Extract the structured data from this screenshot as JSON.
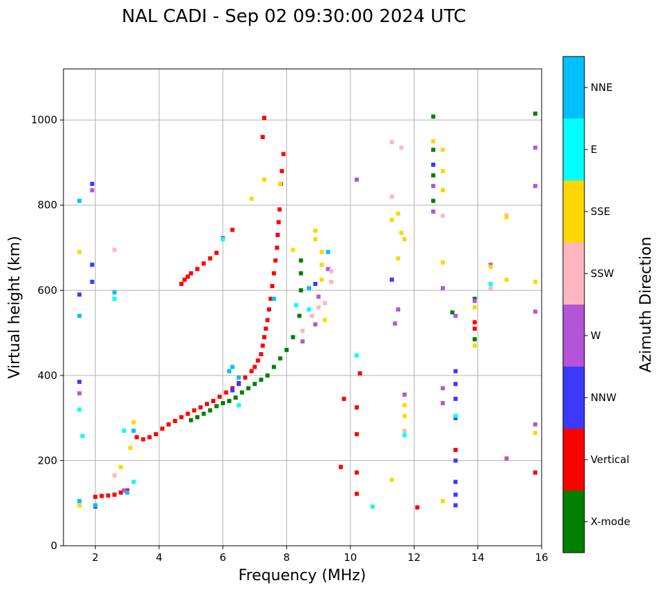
{
  "chart_data": {
    "type": "scatter",
    "title": "NAL CADI - Sep 02 09:30:00 2024 UTC",
    "xlabel": "Frequency (MHz)",
    "ylabel": "Virtual height (km)",
    "xlim": [
      1,
      16
    ],
    "ylim": [
      0,
      1120
    ],
    "xticks": [
      2,
      4,
      6,
      8,
      10,
      12,
      14,
      16
    ],
    "yticks": [
      0,
      200,
      400,
      600,
      800,
      1000
    ],
    "grid": true,
    "colorbar": {
      "title": "Azimuth Direction",
      "categories": [
        {
          "name": "X-mode",
          "color": "#008000"
        },
        {
          "name": "Vertical",
          "color": "#ff0000"
        },
        {
          "name": "NNW",
          "color": "#3a3aff"
        },
        {
          "name": "W",
          "color": "#b455d8"
        },
        {
          "name": "SSW",
          "color": "#ffb6c1"
        },
        {
          "name": "SSE",
          "color": "#ffd700"
        },
        {
          "name": "E",
          "color": "#00ffff"
        },
        {
          "name": "NNE",
          "color": "#00bfff"
        }
      ]
    },
    "series": [
      {
        "name": "Vertical",
        "color": "#ff0000",
        "points": [
          [
            2.0,
            115
          ],
          [
            2.2,
            117
          ],
          [
            2.4,
            118
          ],
          [
            2.6,
            120
          ],
          [
            2.8,
            125
          ],
          [
            3.0,
            130
          ],
          [
            3.3,
            255
          ],
          [
            3.5,
            250
          ],
          [
            3.7,
            255
          ],
          [
            3.9,
            262
          ],
          [
            4.1,
            275
          ],
          [
            4.3,
            285
          ],
          [
            4.5,
            293
          ],
          [
            4.7,
            302
          ],
          [
            4.9,
            310
          ],
          [
            5.1,
            318
          ],
          [
            5.3,
            325
          ],
          [
            5.5,
            333
          ],
          [
            5.7,
            340
          ],
          [
            5.9,
            350
          ],
          [
            6.1,
            360
          ],
          [
            6.3,
            370
          ],
          [
            6.5,
            382
          ],
          [
            6.7,
            395
          ],
          [
            6.9,
            410
          ],
          [
            7.0,
            420
          ],
          [
            7.1,
            435
          ],
          [
            7.2,
            450
          ],
          [
            7.25,
            470
          ],
          [
            7.3,
            490
          ],
          [
            7.35,
            510
          ],
          [
            7.4,
            530
          ],
          [
            7.45,
            555
          ],
          [
            7.5,
            580
          ],
          [
            7.55,
            610
          ],
          [
            7.6,
            640
          ],
          [
            7.65,
            670
          ],
          [
            7.7,
            700
          ],
          [
            7.72,
            730
          ],
          [
            7.75,
            760
          ],
          [
            7.78,
            790
          ],
          [
            7.82,
            850
          ],
          [
            7.85,
            880
          ],
          [
            7.9,
            920
          ],
          [
            7.3,
            1005
          ],
          [
            7.25,
            960
          ],
          [
            4.7,
            615
          ],
          [
            4.8,
            625
          ],
          [
            4.9,
            632
          ],
          [
            5.0,
            640
          ],
          [
            5.2,
            650
          ],
          [
            5.4,
            663
          ],
          [
            5.6,
            675
          ],
          [
            5.8,
            688
          ],
          [
            6.0,
            722
          ],
          [
            6.3,
            742
          ],
          [
            10.3,
            405
          ],
          [
            10.2,
            325
          ],
          [
            10.2,
            262
          ],
          [
            10.2,
            172
          ],
          [
            10.2,
            122
          ],
          [
            9.8,
            345
          ],
          [
            9.7,
            185
          ],
          [
            12.1,
            90
          ],
          [
            13.3,
            225
          ],
          [
            13.9,
            525
          ],
          [
            13.9,
            510
          ],
          [
            15.8,
            172
          ]
        ]
      },
      {
        "name": "X-mode",
        "color": "#008000",
        "points": [
          [
            5.0,
            295
          ],
          [
            5.2,
            302
          ],
          [
            5.4,
            310
          ],
          [
            5.6,
            318
          ],
          [
            5.8,
            328
          ],
          [
            6.0,
            335
          ],
          [
            6.2,
            340
          ],
          [
            6.4,
            348
          ],
          [
            6.6,
            360
          ],
          [
            6.8,
            370
          ],
          [
            7.0,
            380
          ],
          [
            7.2,
            390
          ],
          [
            7.4,
            400
          ],
          [
            7.6,
            420
          ],
          [
            7.8,
            440
          ],
          [
            8.0,
            460
          ],
          [
            8.2,
            490
          ],
          [
            8.4,
            540
          ],
          [
            8.45,
            600
          ],
          [
            8.45,
            640
          ],
          [
            8.45,
            670
          ],
          [
            12.6,
            1008
          ],
          [
            12.6,
            930
          ],
          [
            12.6,
            870
          ],
          [
            12.6,
            810
          ],
          [
            13.2,
            548
          ],
          [
            13.9,
            580
          ],
          [
            13.9,
            485
          ],
          [
            15.8,
            1015
          ]
        ]
      },
      {
        "name": "NNW",
        "color": "#3a3aff",
        "points": [
          [
            1.5,
            590
          ],
          [
            1.5,
            385
          ],
          [
            1.9,
            660
          ],
          [
            1.9,
            620
          ],
          [
            1.9,
            850
          ],
          [
            2.0,
            92
          ],
          [
            8.9,
            615
          ],
          [
            12.6,
            895
          ],
          [
            13.3,
            410
          ],
          [
            13.3,
            380
          ],
          [
            13.3,
            345
          ],
          [
            13.3,
            300
          ],
          [
            13.3,
            200
          ],
          [
            13.3,
            150
          ],
          [
            13.3,
            120
          ],
          [
            13.3,
            95
          ],
          [
            11.3,
            625
          ],
          [
            6.5,
            380
          ],
          [
            6.3,
            365
          ]
        ]
      },
      {
        "name": "W",
        "color": "#b455d8",
        "points": [
          [
            1.5,
            358
          ],
          [
            1.9,
            835
          ],
          [
            2.9,
            130
          ],
          [
            8.5,
            480
          ],
          [
            8.9,
            520
          ],
          [
            9.0,
            585
          ],
          [
            9.3,
            650
          ],
          [
            11.7,
            355
          ],
          [
            12.9,
            335
          ],
          [
            12.9,
            370
          ],
          [
            12.6,
            845
          ],
          [
            12.6,
            785
          ],
          [
            12.9,
            605
          ],
          [
            13.3,
            540
          ],
          [
            13.9,
            575
          ],
          [
            14.4,
            660
          ],
          [
            14.9,
            205
          ],
          [
            15.8,
            845
          ],
          [
            15.8,
            550
          ],
          [
            15.8,
            285
          ],
          [
            15.8,
            935
          ],
          [
            10.2,
            860
          ],
          [
            11.4,
            522
          ],
          [
            11.5,
            555
          ]
        ]
      },
      {
        "name": "SSW",
        "color": "#ffb6c1",
        "points": [
          [
            2.6,
            165
          ],
          [
            2.6,
            695
          ],
          [
            8.5,
            505
          ],
          [
            8.8,
            540
          ],
          [
            9.0,
            560
          ],
          [
            9.2,
            570
          ],
          [
            9.4,
            620
          ],
          [
            11.3,
            948
          ],
          [
            11.3,
            820
          ],
          [
            11.6,
            935
          ],
          [
            11.7,
            270
          ],
          [
            12.9,
            775
          ],
          [
            14.4,
            605
          ],
          [
            14.9,
            776
          ],
          [
            9.4,
            645
          ]
        ]
      },
      {
        "name": "SSE",
        "color": "#ffd700",
        "points": [
          [
            1.5,
            95
          ],
          [
            1.5,
            690
          ],
          [
            2.8,
            185
          ],
          [
            3.1,
            230
          ],
          [
            3.2,
            290
          ],
          [
            6.9,
            815
          ],
          [
            7.3,
            860
          ],
          [
            7.8,
            850
          ],
          [
            8.2,
            695
          ],
          [
            8.9,
            740
          ],
          [
            8.9,
            720
          ],
          [
            9.1,
            690
          ],
          [
            9.1,
            660
          ],
          [
            9.1,
            625
          ],
          [
            9.2,
            530
          ],
          [
            11.3,
            765
          ],
          [
            11.3,
            155
          ],
          [
            11.5,
            780
          ],
          [
            11.6,
            735
          ],
          [
            11.7,
            720
          ],
          [
            11.7,
            330
          ],
          [
            11.7,
            305
          ],
          [
            12.6,
            950
          ],
          [
            12.9,
            930
          ],
          [
            12.9,
            880
          ],
          [
            12.9,
            835
          ],
          [
            12.9,
            665
          ],
          [
            12.9,
            105
          ],
          [
            13.9,
            470
          ],
          [
            13.9,
            560
          ],
          [
            14.4,
            655
          ],
          [
            14.9,
            625
          ],
          [
            14.9,
            772
          ],
          [
            15.8,
            265
          ],
          [
            15.8,
            620
          ],
          [
            11.5,
            675
          ]
        ]
      },
      {
        "name": "E",
        "color": "#00ffff",
        "points": [
          [
            1.5,
            320
          ],
          [
            1.6,
            258
          ],
          [
            2.6,
            580
          ],
          [
            2.9,
            270
          ],
          [
            3.2,
            150
          ],
          [
            6.0,
            720
          ],
          [
            6.5,
            330
          ],
          [
            8.3,
            565
          ],
          [
            8.7,
            555
          ],
          [
            9.3,
            690
          ],
          [
            10.2,
            447
          ],
          [
            10.7,
            92
          ],
          [
            11.7,
            260
          ],
          [
            13.3,
            305
          ],
          [
            14.4,
            615
          ]
        ]
      },
      {
        "name": "NNE",
        "color": "#00bfff",
        "points": [
          [
            1.5,
            810
          ],
          [
            1.5,
            540
          ],
          [
            1.5,
            105
          ],
          [
            2.0,
            95
          ],
          [
            2.6,
            595
          ],
          [
            3.0,
            125
          ],
          [
            3.2,
            270
          ],
          [
            6.2,
            410
          ],
          [
            6.3,
            420
          ],
          [
            6.5,
            395
          ],
          [
            7.6,
            580
          ],
          [
            8.7,
            605
          ],
          [
            9.3,
            690
          ]
        ]
      }
    ]
  }
}
